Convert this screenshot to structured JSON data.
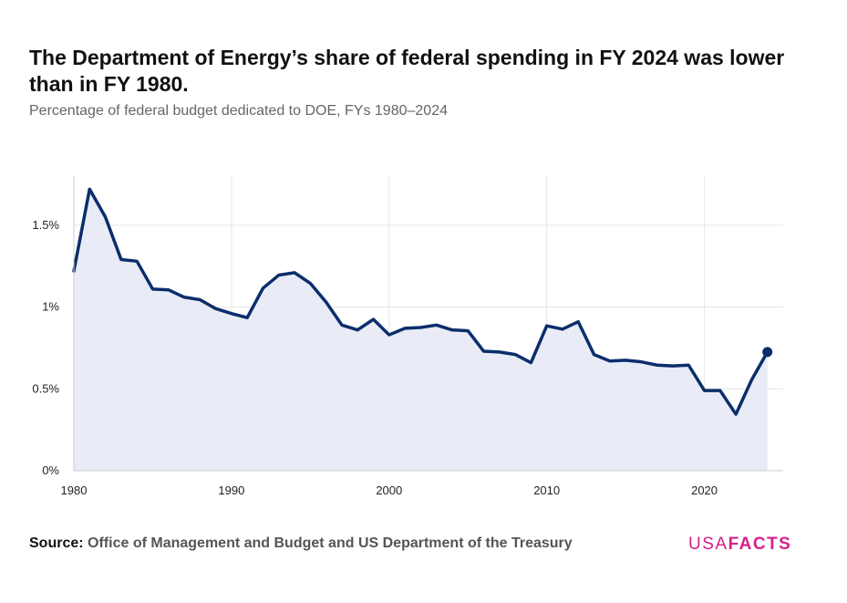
{
  "header": {
    "title": "The Department of Energy’s share of federal spending in FY 2024 was lower than in FY 1980.",
    "subtitle": "Percentage of federal budget dedicated to DOE, FYs 1980–2024"
  },
  "footer": {
    "source_label": "Source:",
    "source_text": "Office of Management and Budget and US Department of the Treasury",
    "brand_part1": "USA",
    "brand_part2": "FACTS"
  },
  "colors": {
    "line": "#0b2e6b",
    "area": "#e9ecf6",
    "grid": "#e6e6e6",
    "brand": "#d6218a"
  },
  "chart_data": {
    "type": "area",
    "title": "The Department of Energy’s share of federal spending in FY 2024 was lower than in FY 1980.",
    "subtitle": "Percentage of federal budget dedicated to DOE, FYs 1980–2024",
    "xlabel": "",
    "ylabel": "",
    "xlim": [
      1980,
      2025
    ],
    "ylim": [
      0,
      1.8
    ],
    "grid": true,
    "x_ticks": [
      1980,
      1990,
      2000,
      2010,
      2020
    ],
    "x_tick_labels": [
      "1980",
      "1990",
      "2000",
      "2010",
      "2020"
    ],
    "y_ticks": [
      0,
      0.5,
      1,
      1.5
    ],
    "y_tick_labels": [
      "0%",
      "0.5%",
      "1%",
      "1.5%"
    ],
    "highlight_last_point": true,
    "series": [
      {
        "x": [
          1980,
          1981,
          1982,
          1983,
          1984,
          1985,
          1986,
          1987,
          1988,
          1989,
          1990,
          1991,
          1992,
          1993,
          1994,
          1995,
          1996,
          1997,
          1998,
          1999,
          2000,
          2001,
          2002,
          2003,
          2004,
          2005,
          2006,
          2007,
          2008,
          2009,
          2010,
          2011,
          2012,
          2013,
          2014,
          2015,
          2016,
          2017,
          2018,
          2019,
          2020,
          2021,
          2022,
          2023,
          2024
        ],
        "values": [
          1.22,
          1.72,
          1.55,
          1.29,
          1.28,
          1.11,
          1.105,
          1.06,
          1.045,
          0.99,
          0.96,
          0.935,
          1.115,
          1.195,
          1.21,
          1.145,
          1.03,
          0.89,
          0.86,
          0.925,
          0.83,
          0.87,
          0.875,
          0.89,
          0.86,
          0.855,
          0.73,
          0.725,
          0.71,
          0.66,
          0.885,
          0.865,
          0.91,
          0.71,
          0.67,
          0.675,
          0.665,
          0.645,
          0.64,
          0.645,
          0.49,
          0.49,
          0.345,
          0.555,
          0.725
        ]
      }
    ]
  }
}
